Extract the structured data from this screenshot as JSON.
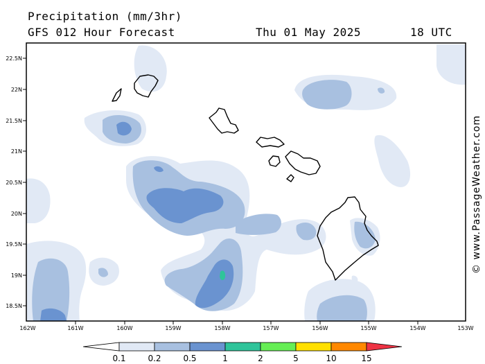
{
  "header": {
    "title": "Precipitation (mm/3hr)",
    "model": "GFS 012 Hour Forecast",
    "date": "Thu 01 May 2025",
    "time": "18 UTC"
  },
  "credit": "© www.PassageWeather.com",
  "map": {
    "lat_ticks": [
      "22.5N",
      "22N",
      "21.5N",
      "21N",
      "20.5N",
      "20N",
      "19.5N",
      "19N",
      "18.5N"
    ],
    "lon_ticks": [
      "162W",
      "161W",
      "160W",
      "159W",
      "158W",
      "157W",
      "156W",
      "155W",
      "154W",
      "153W"
    ]
  },
  "legend": {
    "levels": [
      "0.1",
      "0.2",
      "0.5",
      "1",
      "2",
      "5",
      "10",
      "15"
    ],
    "colors": [
      "#ffffff",
      "#e1e9f5",
      "#a8c0e0",
      "#6a93d0",
      "#2fc49a",
      "#66ee55",
      "#ffe000",
      "#ff8800",
      "#ee3344"
    ]
  }
}
